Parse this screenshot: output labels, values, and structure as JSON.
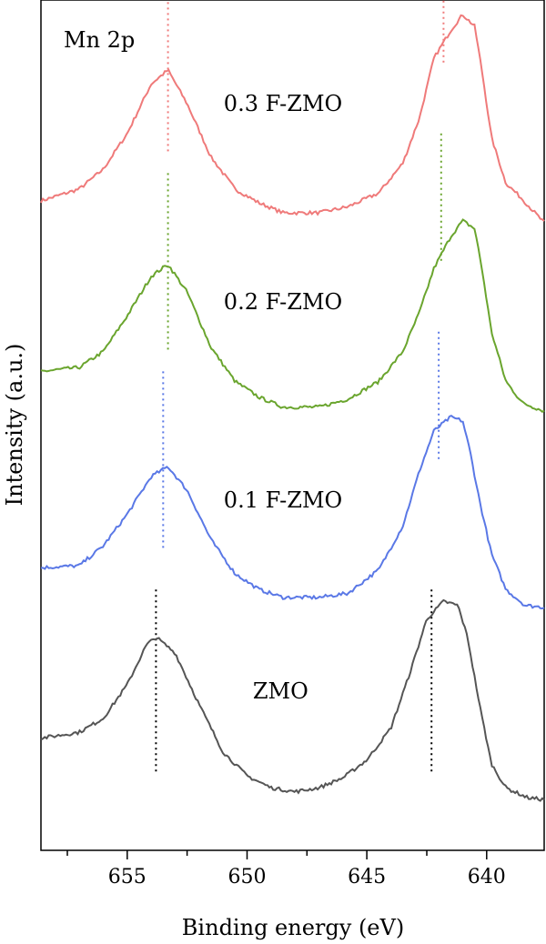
{
  "chart_data": {
    "type": "line",
    "panel_label": "Mn 2p",
    "xlabel": "Binding energy (eV)",
    "ylabel": "Intensity (a.u.)",
    "xlim": [
      658.6,
      637.6
    ],
    "x_reversed": true,
    "x_ticks": [
      655,
      650,
      645,
      640
    ],
    "x_tick_labels": [
      "655",
      "650",
      "645",
      "640"
    ],
    "y_ticks_shown": false,
    "legend": "none",
    "series": [
      {
        "name": "0.3 F-ZMO",
        "color": "#ef7a7a",
        "offset": 3.0,
        "peaks": [
          653.3,
          641.8
        ],
        "points": [
          [
            658.6,
            0.06
          ],
          [
            657.0,
            0.12
          ],
          [
            656.0,
            0.22
          ],
          [
            655.0,
            0.4
          ],
          [
            654.0,
            0.65
          ],
          [
            653.3,
            0.72
          ],
          [
            652.5,
            0.55
          ],
          [
            651.5,
            0.28
          ],
          [
            650.5,
            0.12
          ],
          [
            649.5,
            0.05
          ],
          [
            648.5,
            0.0
          ],
          [
            647.0,
            0.0
          ],
          [
            645.8,
            0.03
          ],
          [
            644.5,
            0.1
          ],
          [
            643.5,
            0.25
          ],
          [
            642.8,
            0.48
          ],
          [
            642.2,
            0.78
          ],
          [
            641.5,
            0.92
          ],
          [
            641.0,
            1.0
          ],
          [
            640.5,
            0.94
          ],
          [
            640.2,
            0.72
          ],
          [
            639.8,
            0.38
          ],
          [
            639.2,
            0.15
          ],
          [
            638.6,
            0.08
          ],
          [
            637.6,
            -0.05
          ]
        ]
      },
      {
        "name": "0.2 F-ZMO",
        "color": "#6aa52e",
        "offset": 2.0,
        "peaks": [
          653.3,
          641.9
        ],
        "points": [
          [
            658.6,
            0.2
          ],
          [
            657.0,
            0.22
          ],
          [
            656.0,
            0.3
          ],
          [
            655.0,
            0.48
          ],
          [
            654.0,
            0.68
          ],
          [
            653.3,
            0.74
          ],
          [
            652.5,
            0.6
          ],
          [
            651.5,
            0.32
          ],
          [
            650.5,
            0.15
          ],
          [
            649.5,
            0.07
          ],
          [
            648.5,
            0.02
          ],
          [
            647.0,
            0.02
          ],
          [
            645.8,
            0.06
          ],
          [
            644.5,
            0.15
          ],
          [
            643.5,
            0.3
          ],
          [
            642.8,
            0.5
          ],
          [
            642.2,
            0.72
          ],
          [
            641.5,
            0.88
          ],
          [
            641.0,
            0.96
          ],
          [
            640.5,
            0.92
          ],
          [
            640.2,
            0.72
          ],
          [
            639.8,
            0.4
          ],
          [
            639.2,
            0.15
          ],
          [
            638.5,
            0.04
          ],
          [
            637.6,
            0.0
          ]
        ]
      },
      {
        "name": "0.1 F-ZMO",
        "color": "#5a78e6",
        "offset": 1.0,
        "peaks": [
          653.5,
          642.0
        ],
        "points": [
          [
            658.6,
            0.21
          ],
          [
            657.0,
            0.22
          ],
          [
            656.0,
            0.32
          ],
          [
            655.0,
            0.48
          ],
          [
            654.0,
            0.67
          ],
          [
            653.3,
            0.72
          ],
          [
            652.5,
            0.6
          ],
          [
            651.5,
            0.35
          ],
          [
            650.5,
            0.18
          ],
          [
            649.5,
            0.1
          ],
          [
            648.5,
            0.06
          ],
          [
            647.0,
            0.06
          ],
          [
            645.8,
            0.08
          ],
          [
            644.5,
            0.2
          ],
          [
            643.5,
            0.42
          ],
          [
            642.8,
            0.7
          ],
          [
            642.2,
            0.9
          ],
          [
            641.5,
            0.97
          ],
          [
            641.0,
            0.95
          ],
          [
            640.7,
            0.8
          ],
          [
            640.3,
            0.55
          ],
          [
            639.8,
            0.28
          ],
          [
            639.2,
            0.1
          ],
          [
            638.4,
            0.02
          ],
          [
            637.6,
            0.01
          ]
        ]
      },
      {
        "name": "ZMO",
        "color": "#555555",
        "offset": 0.0,
        "peaks": [
          653.8,
          642.3
        ],
        "points": [
          [
            658.6,
            0.35
          ],
          [
            657.0,
            0.38
          ],
          [
            656.0,
            0.45
          ],
          [
            655.0,
            0.62
          ],
          [
            654.2,
            0.82
          ],
          [
            653.8,
            0.86
          ],
          [
            653.0,
            0.78
          ],
          [
            652.0,
            0.52
          ],
          [
            651.0,
            0.28
          ],
          [
            650.0,
            0.16
          ],
          [
            649.0,
            0.1
          ],
          [
            648.0,
            0.08
          ],
          [
            647.0,
            0.1
          ],
          [
            646.0,
            0.15
          ],
          [
            645.0,
            0.24
          ],
          [
            644.0,
            0.4
          ],
          [
            643.2,
            0.68
          ],
          [
            642.5,
            0.95
          ],
          [
            641.8,
            1.04
          ],
          [
            641.2,
            1.02
          ],
          [
            640.8,
            0.86
          ],
          [
            640.3,
            0.52
          ],
          [
            639.8,
            0.22
          ],
          [
            639.2,
            0.1
          ],
          [
            638.3,
            0.05
          ],
          [
            637.6,
            0.04
          ]
        ]
      }
    ]
  }
}
